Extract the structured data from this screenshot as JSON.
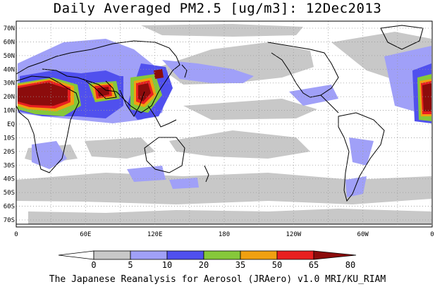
{
  "title": "Daily Averaged PM2.5 [ug/m3]: 12Dec2013",
  "footer": "The Japanese Reanalysis for Aerosol (JRAero) v1.0 MRI/KU_RIAM",
  "lat_labels": [
    "70N",
    "60N",
    "50N",
    "40N",
    "30N",
    "20N",
    "10N",
    "EQ",
    "10S",
    "20S",
    "30S",
    "40S",
    "50S",
    "60S",
    "70S"
  ],
  "lon_labels": [
    "0",
    "60E",
    "120E",
    "180",
    "120W",
    "60W",
    "0"
  ],
  "colorbar": {
    "levels": [
      "0",
      "5",
      "10",
      "20",
      "35",
      "50",
      "65",
      "80"
    ],
    "colors": [
      "#ffffff",
      "#c8c8c8",
      "#a0a0f8",
      "#5050ee",
      "#86c83a",
      "#f0a010",
      "#e82020",
      "#8c0c0c"
    ]
  },
  "colors": {
    "ocean": "#ffffff",
    "grid": "#9a9a9a",
    "coast": "#000000"
  }
}
